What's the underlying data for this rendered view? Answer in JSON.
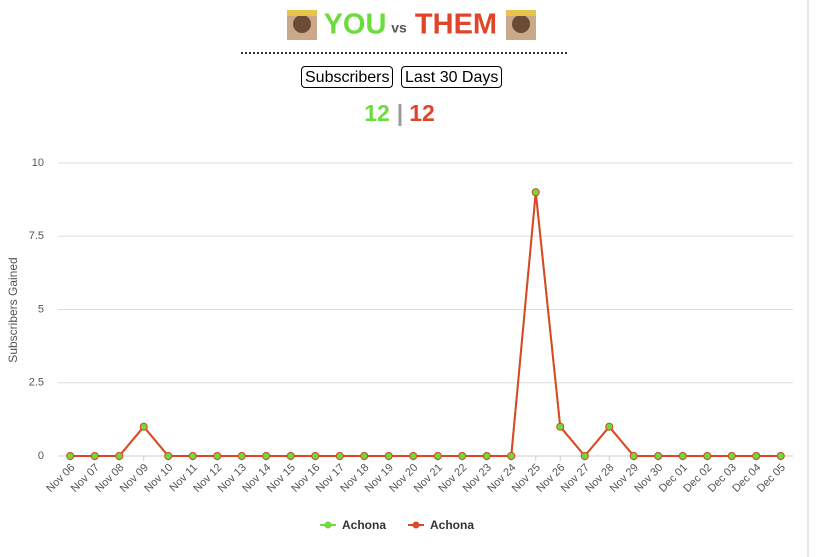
{
  "header": {
    "you": "YOU",
    "vs": "vs",
    "them": "THEM"
  },
  "buttons": [
    "Subscribers",
    "Last 30 Days"
  ],
  "score": {
    "you": "12",
    "separator": "|",
    "them": "12"
  },
  "chart_data": {
    "type": "line",
    "y_label": "Subscribers Gained",
    "categories": [
      "Nov 06",
      "Nov 07",
      "Nov 08",
      "Nov 09",
      "Nov 10",
      "Nov 11",
      "Nov 12",
      "Nov 13",
      "Nov 14",
      "Nov 15",
      "Nov 16",
      "Nov 17",
      "Nov 18",
      "Nov 19",
      "Nov 20",
      "Nov 21",
      "Nov 22",
      "Nov 23",
      "Nov 24",
      "Nov 25",
      "Nov 26",
      "Nov 27",
      "Nov 28",
      "Nov 29",
      "Nov 30",
      "Dec 01",
      "Dec 02",
      "Dec 03",
      "Dec 04",
      "Dec 05"
    ],
    "series": [
      {
        "name": "Achona",
        "color": "#6bdc3c",
        "values": [
          0,
          0,
          0,
          1,
          0,
          0,
          0,
          0,
          0,
          0,
          0,
          0,
          0,
          0,
          0,
          0,
          0,
          0,
          0,
          9,
          1,
          0,
          1,
          0,
          0,
          0,
          0,
          0,
          0,
          0
        ]
      },
      {
        "name": "Achona",
        "color": "#e0452a",
        "values": [
          0,
          0,
          0,
          1,
          0,
          0,
          0,
          0,
          0,
          0,
          0,
          0,
          0,
          0,
          0,
          0,
          0,
          0,
          0,
          9,
          1,
          0,
          1,
          0,
          0,
          0,
          0,
          0,
          0,
          0
        ]
      }
    ],
    "ylim": [
      0,
      10
    ],
    "yticks": [
      0,
      2.5,
      5,
      7.5,
      10
    ],
    "grid": true
  }
}
